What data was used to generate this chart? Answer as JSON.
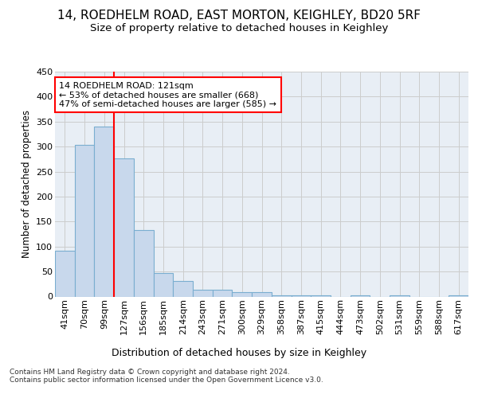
{
  "title1": "14, ROEDHELM ROAD, EAST MORTON, KEIGHLEY, BD20 5RF",
  "title2": "Size of property relative to detached houses in Keighley",
  "xlabel": "Distribution of detached houses by size in Keighley",
  "ylabel": "Number of detached properties",
  "bin_labels": [
    "41sqm",
    "70sqm",
    "99sqm",
    "127sqm",
    "156sqm",
    "185sqm",
    "214sqm",
    "243sqm",
    "271sqm",
    "300sqm",
    "329sqm",
    "358sqm",
    "387sqm",
    "415sqm",
    "444sqm",
    "473sqm",
    "502sqm",
    "531sqm",
    "559sqm",
    "588sqm",
    "617sqm"
  ],
  "bar_heights": [
    91,
    303,
    340,
    277,
    133,
    47,
    31,
    13,
    13,
    8,
    8,
    3,
    3,
    3,
    0,
    3,
    0,
    3,
    0,
    0,
    3
  ],
  "bar_color": "#c8d8ec",
  "bar_edge_color": "#7aaed0",
  "annotation_line1": "14 ROEDHELM ROAD: 121sqm",
  "annotation_line2": "← 53% of detached houses are smaller (668)",
  "annotation_line3": "47% of semi-detached houses are larger (585) →",
  "vline_color": "red",
  "vline_bin_idx": 3,
  "ylim": [
    0,
    450
  ],
  "yticks": [
    0,
    50,
    100,
    150,
    200,
    250,
    300,
    350,
    400,
    450
  ],
  "grid_color": "#cccccc",
  "bg_color": "#e8eef5",
  "footer_text": "Contains HM Land Registry data © Crown copyright and database right 2024.\nContains public sector information licensed under the Open Government Licence v3.0.",
  "title1_fontsize": 11,
  "title2_fontsize": 9.5,
  "xlabel_fontsize": 9,
  "ylabel_fontsize": 8.5,
  "tick_fontsize": 8,
  "annot_fontsize": 8,
  "footer_fontsize": 6.5
}
